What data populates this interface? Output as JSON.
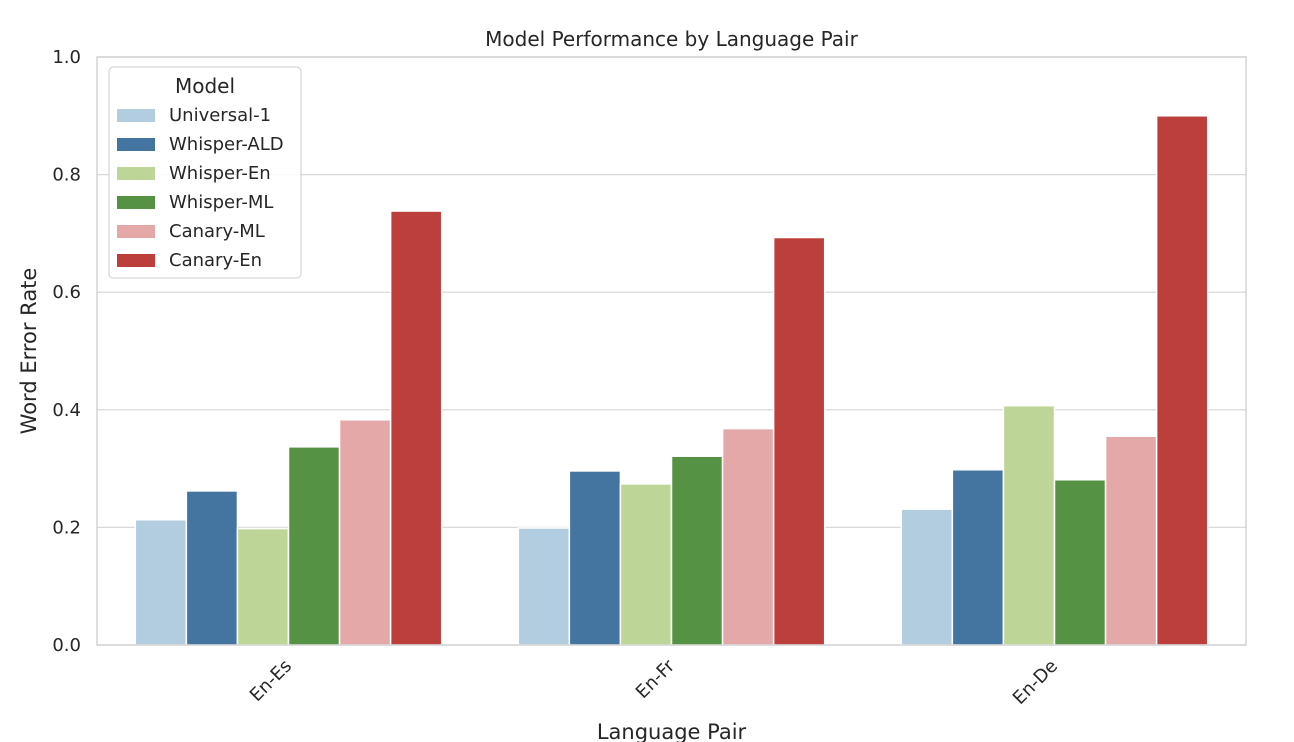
{
  "chart_data": {
    "type": "bar",
    "title": "Model Performance by Language Pair",
    "xlabel": "Language Pair",
    "ylabel": "Word Error Rate",
    "ylim": [
      0,
      1.0
    ],
    "yticks": [
      "0.0",
      "0.2",
      "0.4",
      "0.6",
      "0.8",
      "1.0"
    ],
    "categories": [
      "En-Es",
      "En-Fr",
      "En-De"
    ],
    "grid": "horizontal",
    "legend": {
      "title": "Model",
      "placement": "top-left"
    },
    "series": [
      {
        "name": "Universal-1",
        "color": "#b3cde0",
        "values": [
          0.213,
          0.199,
          0.231
        ]
      },
      {
        "name": "Whisper-ALD",
        "color": "#4474a0",
        "values": [
          0.262,
          0.296,
          0.298
        ]
      },
      {
        "name": "Whisper-En",
        "color": "#bdd697",
        "values": [
          0.198,
          0.274,
          0.407
        ]
      },
      {
        "name": "Whisper-ML",
        "color": "#559244",
        "values": [
          0.337,
          0.321,
          0.281
        ]
      },
      {
        "name": "Canary-ML",
        "color": "#e5a8a8",
        "values": [
          0.383,
          0.368,
          0.355
        ]
      },
      {
        "name": "Canary-En",
        "color": "#bc3f3c",
        "values": [
          0.738,
          0.693,
          0.9
        ]
      }
    ]
  }
}
